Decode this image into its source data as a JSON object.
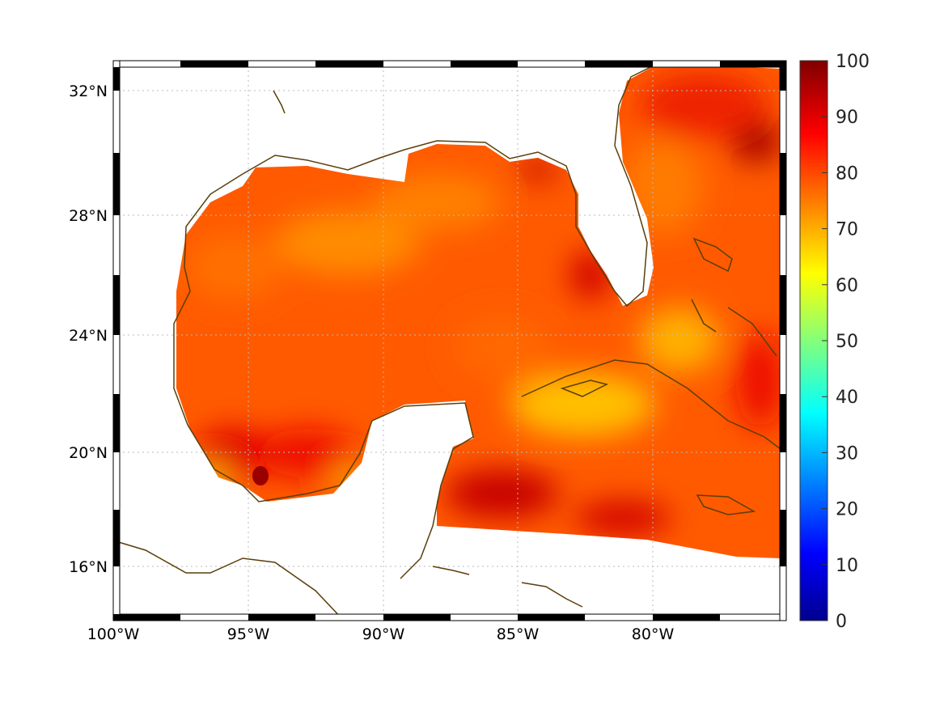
{
  "chart_data": {
    "type": "heatmap",
    "title": "",
    "xlabel": "",
    "ylabel": "",
    "x_ticks": [
      "100°W",
      "95°W",
      "90°W",
      "85°W",
      "80°W"
    ],
    "x_tick_values": [
      -100,
      -95,
      -90,
      -85,
      -80
    ],
    "y_ticks": [
      "32°N",
      "28°N",
      "24°N",
      "20°N",
      "16°N"
    ],
    "y_tick_values": [
      32,
      28,
      24,
      20,
      16
    ],
    "xlim": [
      -100,
      -75
    ],
    "ylim": [
      14.4,
      33
    ],
    "colormap": "jet",
    "colorbar": {
      "range": [
        0,
        100
      ],
      "ticks": [
        "0",
        "10",
        "20",
        "30",
        "40",
        "50",
        "60",
        "70",
        "80",
        "90",
        "100"
      ],
      "tick_values": [
        0,
        10,
        20,
        30,
        40,
        50,
        60,
        70,
        80,
        90,
        100
      ]
    },
    "typical_value_range": [
      70,
      98
    ],
    "grid": true,
    "coastline_color": "#5a3e0a"
  }
}
